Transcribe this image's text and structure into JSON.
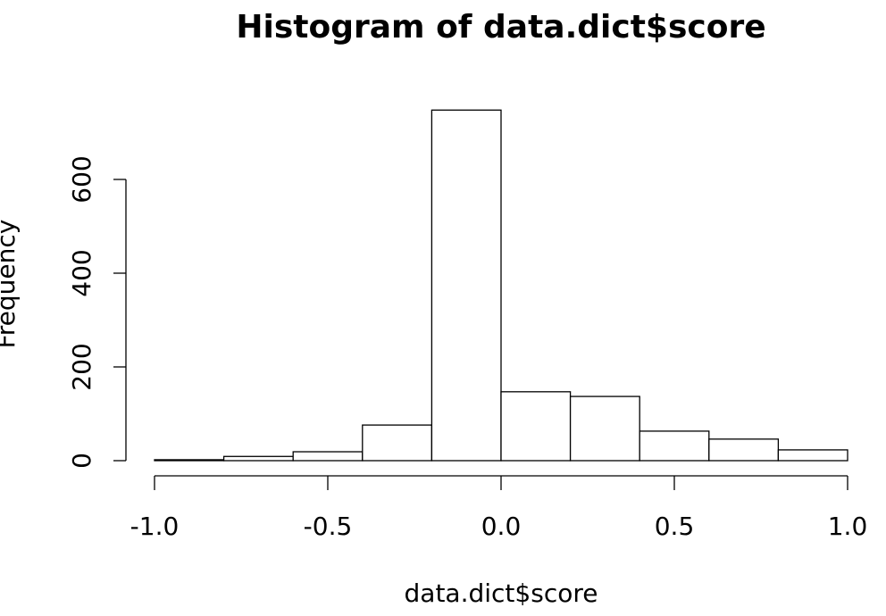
{
  "chart_data": {
    "type": "histogram",
    "title": "Histogram of data.dict$score",
    "xlabel": "data.dict$score",
    "ylabel": "Frequency",
    "bins": [
      -1.0,
      -0.8,
      -0.6,
      -0.4,
      -0.2,
      0.0,
      0.2,
      0.4,
      0.6,
      0.8,
      1.0
    ],
    "values": [
      2,
      9,
      19,
      76,
      748,
      147,
      137,
      63,
      46,
      23
    ],
    "color": "#ffffff",
    "xlim": [
      -1,
      1
    ],
    "xticks": [
      {
        "value": -1,
        "label": "-1.0"
      },
      -0.5,
      {
        "value": 0,
        "label": "0.0"
      },
      0.5,
      {
        "value": 1,
        "label": "1.0"
      }
    ],
    "ylim": [
      0,
      760
    ],
    "yticks": [
      0,
      200,
      400,
      600
    ]
  }
}
